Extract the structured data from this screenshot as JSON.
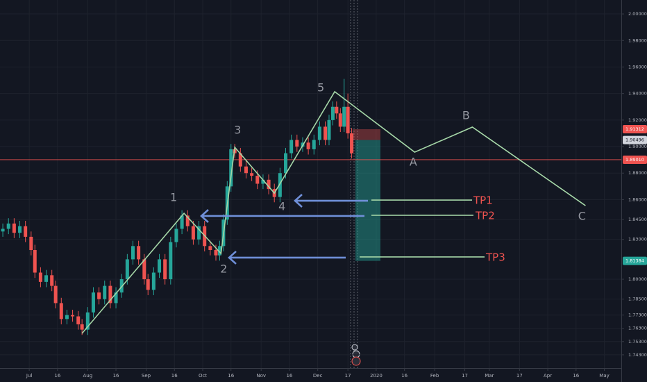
{
  "chart_data": {
    "type": "candlestick",
    "xlim": [
      -15.5,
      314
    ],
    "xticks": [
      {
        "value": 0,
        "label": "Jul"
      },
      {
        "value": 15,
        "label": "16"
      },
      {
        "value": 31,
        "label": "Aug"
      },
      {
        "value": 46,
        "label": "16"
      },
      {
        "value": 62,
        "label": "Sep"
      },
      {
        "value": 77,
        "label": "16"
      },
      {
        "value": 92,
        "label": "Oct"
      },
      {
        "value": 107,
        "label": "16"
      },
      {
        "value": 123,
        "label": "Nov"
      },
      {
        "value": 138,
        "label": "16"
      },
      {
        "value": 153,
        "label": "Dec"
      },
      {
        "value": 169,
        "label": "17"
      },
      {
        "value": 184,
        "label": "2020"
      },
      {
        "value": 199,
        "label": "16"
      },
      {
        "value": 215,
        "label": "Feb"
      },
      {
        "value": 231,
        "label": "17"
      },
      {
        "value": 244,
        "label": "Mar"
      },
      {
        "value": 260,
        "label": "17"
      },
      {
        "value": 275,
        "label": "Apr"
      },
      {
        "value": 290,
        "label": "16"
      },
      {
        "value": 305,
        "label": "May"
      }
    ],
    "ylim": [
      1.733,
      2.0105
    ],
    "yticks": [
      {
        "value": 2.0,
        "label": "2.00000"
      },
      {
        "value": 1.98,
        "label": "1.98000"
      },
      {
        "value": 1.96,
        "label": "1.96000"
      },
      {
        "value": 1.94,
        "label": "1.94000"
      },
      {
        "value": 1.92,
        "label": "1.92000"
      },
      {
        "value": 1.9,
        "label": "1.90000"
      },
      {
        "value": 1.88,
        "label": "1.88000"
      },
      {
        "value": 1.86,
        "label": "1.86000"
      },
      {
        "value": 1.845,
        "label": "1.84500"
      },
      {
        "value": 1.83,
        "label": "1.83000"
      },
      {
        "value": 1.8,
        "label": "1.80000"
      },
      {
        "value": 1.785,
        "label": "1.78500"
      },
      {
        "value": 1.773,
        "label": "1.77300"
      },
      {
        "value": 1.763,
        "label": "1.76300"
      },
      {
        "value": 1.753,
        "label": "1.75300"
      },
      {
        "value": 1.743,
        "label": "1.74300"
      }
    ],
    "grid": true,
    "up_color": "#26a69a",
    "down_color": "#ef5350",
    "candles": {
      "x": [
        -14,
        -11,
        -8,
        -5,
        -2,
        1,
        3,
        6,
        9,
        12,
        14,
        17,
        20,
        23,
        26,
        28,
        31,
        34,
        37,
        40,
        43,
        46,
        49,
        52,
        55,
        58,
        61,
        63,
        66,
        69,
        72,
        75,
        78,
        81,
        84,
        87,
        90,
        93,
        96,
        99,
        101,
        103,
        105,
        107,
        109,
        112,
        115,
        118,
        121,
        124,
        127,
        130,
        133,
        136,
        139,
        142,
        145,
        148,
        151,
        154,
        157,
        159,
        161,
        163,
        165,
        167,
        169,
        171
      ],
      "open": [
        1.836,
        1.838,
        1.842,
        1.835,
        1.84,
        1.832,
        1.822,
        1.805,
        1.798,
        1.803,
        1.795,
        1.782,
        1.77,
        1.773,
        1.772,
        1.766,
        1.762,
        1.775,
        1.79,
        1.785,
        1.795,
        1.782,
        1.79,
        1.8,
        1.815,
        1.825,
        1.815,
        1.8,
        1.792,
        1.805,
        1.815,
        1.8,
        1.828,
        1.838,
        1.848,
        1.84,
        1.83,
        1.84,
        1.825,
        1.822,
        1.818,
        1.825,
        1.845,
        1.87,
        1.898,
        1.895,
        1.885,
        1.88,
        1.878,
        1.872,
        1.875,
        1.868,
        1.862,
        1.88,
        1.895,
        1.905,
        1.9,
        1.903,
        1.898,
        1.905,
        1.915,
        1.905,
        1.92,
        1.93,
        1.925,
        1.915,
        1.93,
        1.91
      ],
      "high": [
        1.842,
        1.846,
        1.846,
        1.844,
        1.844,
        1.836,
        1.826,
        1.809,
        1.807,
        1.807,
        1.799,
        1.786,
        1.777,
        1.777,
        1.776,
        1.77,
        1.779,
        1.794,
        1.794,
        1.799,
        1.799,
        1.794,
        1.804,
        1.819,
        1.829,
        1.829,
        1.819,
        1.804,
        1.809,
        1.819,
        1.819,
        1.832,
        1.842,
        1.852,
        1.852,
        1.844,
        1.844,
        1.844,
        1.829,
        1.826,
        1.829,
        1.849,
        1.874,
        1.902,
        1.902,
        1.899,
        1.889,
        1.884,
        1.882,
        1.879,
        1.879,
        1.872,
        1.884,
        1.899,
        1.909,
        1.909,
        1.907,
        1.907,
        1.909,
        1.919,
        1.919,
        1.924,
        1.934,
        1.934,
        1.929,
        1.951,
        1.94,
        1.914
      ],
      "low": [
        1.832,
        1.834,
        1.831,
        1.831,
        1.828,
        1.818,
        1.801,
        1.794,
        1.794,
        1.791,
        1.778,
        1.766,
        1.766,
        1.768,
        1.762,
        1.758,
        1.758,
        1.771,
        1.781,
        1.781,
        1.778,
        1.778,
        1.786,
        1.796,
        1.811,
        1.811,
        1.796,
        1.788,
        1.788,
        1.801,
        1.796,
        1.796,
        1.824,
        1.834,
        1.836,
        1.826,
        1.826,
        1.821,
        1.818,
        1.814,
        1.814,
        1.821,
        1.841,
        1.866,
        1.891,
        1.881,
        1.876,
        1.874,
        1.868,
        1.868,
        1.864,
        1.858,
        1.858,
        1.876,
        1.891,
        1.896,
        1.896,
        1.894,
        1.894,
        1.901,
        1.901,
        1.901,
        1.916,
        1.921,
        1.911,
        1.911,
        1.906,
        1.891
      ],
      "close": [
        1.838,
        1.842,
        1.835,
        1.84,
        1.832,
        1.822,
        1.805,
        1.798,
        1.803,
        1.795,
        1.782,
        1.77,
        1.773,
        1.772,
        1.766,
        1.762,
        1.775,
        1.79,
        1.785,
        1.795,
        1.782,
        1.79,
        1.8,
        1.815,
        1.825,
        1.815,
        1.8,
        1.792,
        1.805,
        1.815,
        1.8,
        1.828,
        1.838,
        1.848,
        1.84,
        1.83,
        1.84,
        1.825,
        1.822,
        1.818,
        1.825,
        1.845,
        1.87,
        1.898,
        1.895,
        1.885,
        1.88,
        1.878,
        1.872,
        1.875,
        1.868,
        1.862,
        1.88,
        1.895,
        1.905,
        1.9,
        1.903,
        1.898,
        1.905,
        1.915,
        1.905,
        1.92,
        1.93,
        1.925,
        1.915,
        1.93,
        1.91,
        1.895
      ]
    },
    "wave": {
      "color": "#a5d6a7",
      "labels": [
        null,
        "1",
        "2",
        "3",
        "4",
        "5",
        "A",
        "B",
        "C"
      ],
      "x": [
        28,
        82.1,
        101.7,
        109,
        130,
        162,
        204.4,
        235,
        295
      ],
      "y": [
        1.7592,
        1.8497,
        1.8194,
        1.8995,
        1.8649,
        1.9414,
        1.8958,
        1.9147,
        1.8555
      ]
    },
    "price_tags": [
      {
        "value": 1.91312,
        "label": "1.91312",
        "color": "#ef5350"
      },
      {
        "value": 1.90496,
        "label": "1.90496",
        "color": "#d1d4dc"
      },
      {
        "value": 1.8901,
        "label": "1.89010",
        "color": "#ef5350"
      },
      {
        "value": 1.81384,
        "label": "1.81384",
        "color": "#26a69a"
      }
    ],
    "targets": [
      {
        "label": "TP1",
        "value": 1.8597
      },
      {
        "label": "TP2",
        "value": 1.8482
      },
      {
        "label": "TP3",
        "value": 1.8168
      }
    ]
  }
}
